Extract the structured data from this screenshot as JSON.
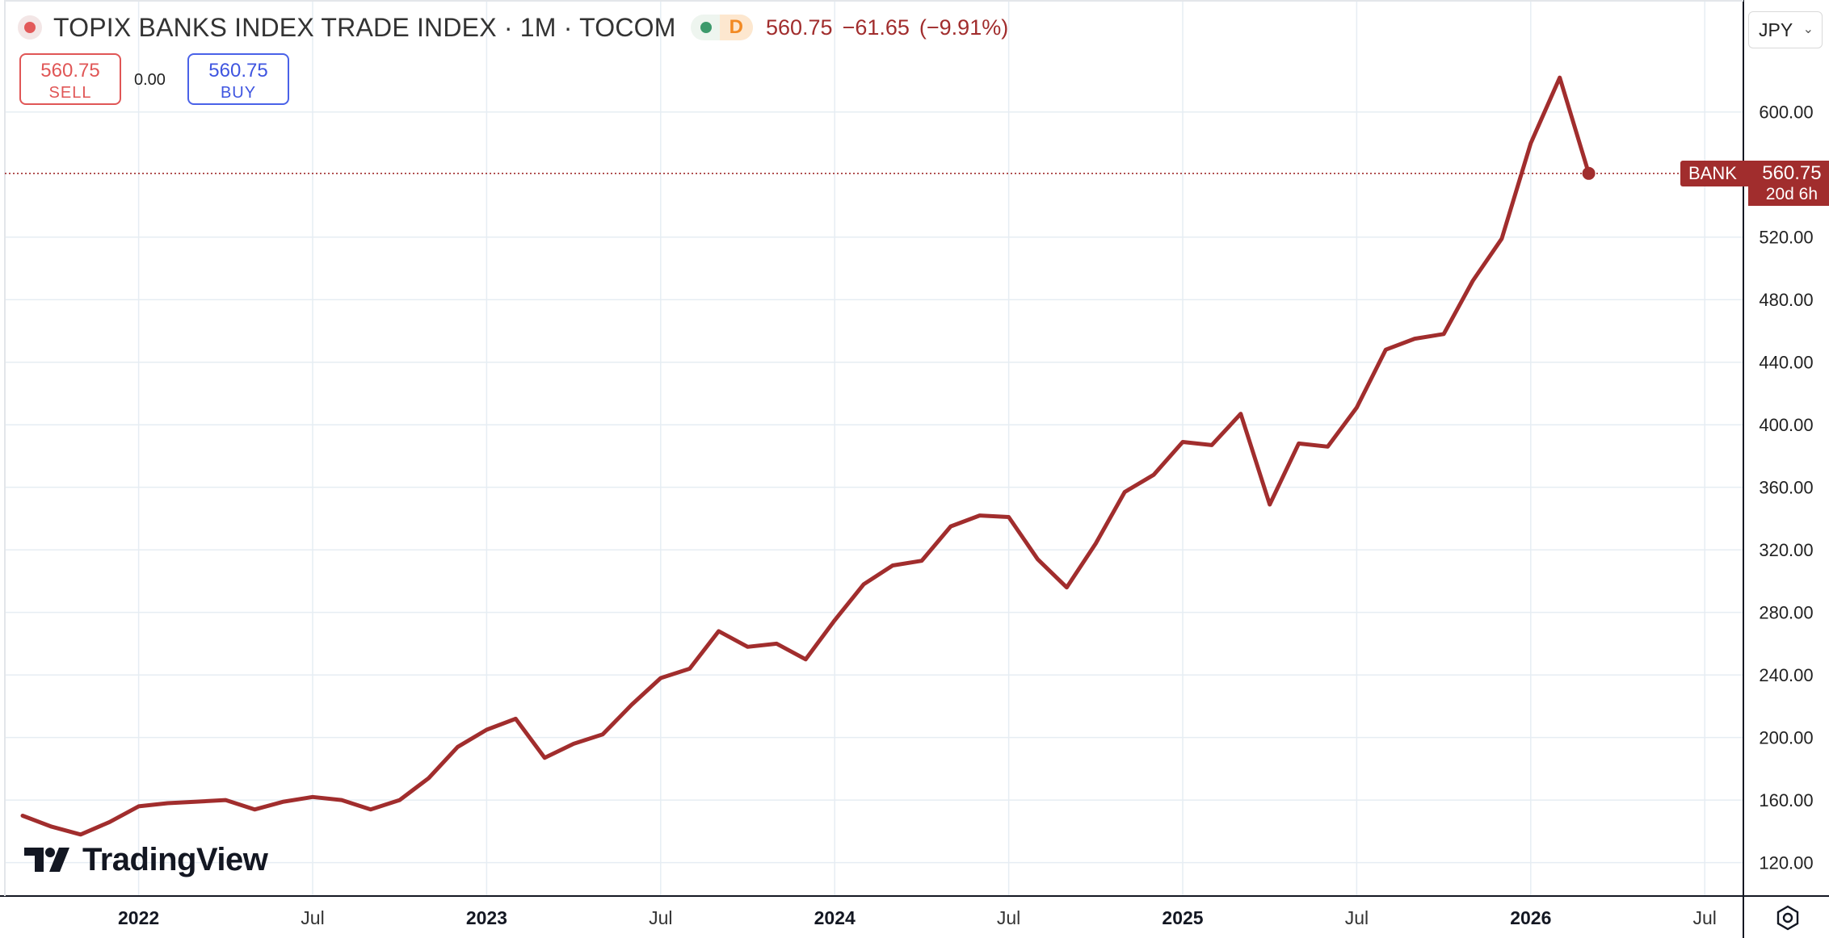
{
  "header": {
    "title": "TOPIX BANKS INDEX TRADE INDEX · 1M · TOCOM",
    "interval_badge": "D",
    "last": "560.75",
    "change": "−61.65",
    "change_pct": "(−9.91%)"
  },
  "trade": {
    "sell_price": "560.75",
    "sell_label": "SELL",
    "spread": "0.00",
    "buy_price": "560.75",
    "buy_label": "BUY"
  },
  "currency": "JPY",
  "price_tag": {
    "name": "BANK",
    "price": "560.75",
    "countdown": "20d 6h"
  },
  "logo_text": "TradingView",
  "colors": {
    "line": "#a12d2d",
    "sell": "#e05656",
    "buy": "#3f55e0",
    "grid": "#e6edf3"
  },
  "icons": {
    "symbol": "red-dot-icon",
    "status": "green-dot-icon",
    "currency_menu": "chevron-down-icon",
    "settings": "hexagon-gear-icon"
  },
  "chart_data": {
    "type": "line",
    "x_unit": "month",
    "x_start": "2021-09",
    "series": [
      {
        "values": [
          150,
          143,
          138,
          146,
          156,
          158,
          159,
          160,
          154,
          159,
          162,
          160,
          154,
          160,
          174,
          194,
          205,
          212,
          187,
          196,
          202,
          221,
          238,
          244,
          268,
          258,
          260,
          250,
          275,
          298,
          310,
          313,
          335,
          342,
          341,
          314,
          296,
          324,
          357,
          368,
          389,
          387,
          407,
          349,
          388,
          386,
          411,
          448,
          455,
          458,
          492,
          519,
          580,
          622,
          560.75
        ]
      }
    ],
    "ylim": [
      110,
      620
    ],
    "y_ticks": [
      "120.00",
      "160.00",
      "200.00",
      "240.00",
      "280.00",
      "320.00",
      "360.00",
      "400.00",
      "440.00",
      "480.00",
      "520.00",
      "600.00"
    ],
    "x_ticks": [
      {
        "label": "2022",
        "date": "2022-01",
        "bold": true
      },
      {
        "label": "Jul",
        "date": "2022-07",
        "bold": false
      },
      {
        "label": "2023",
        "date": "2023-01",
        "bold": true
      },
      {
        "label": "Jul",
        "date": "2023-07",
        "bold": false
      },
      {
        "label": "2024",
        "date": "2024-01",
        "bold": true
      },
      {
        "label": "Jul",
        "date": "2024-07",
        "bold": false
      },
      {
        "label": "2025",
        "date": "2025-01",
        "bold": true
      },
      {
        "label": "Jul",
        "date": "2025-07",
        "bold": false
      },
      {
        "label": "2026",
        "date": "2026-01",
        "bold": true
      },
      {
        "label": "Jul",
        "date": "2026-07",
        "bold": false
      }
    ],
    "last_price": 560.75,
    "grid": true,
    "legend": "none"
  }
}
